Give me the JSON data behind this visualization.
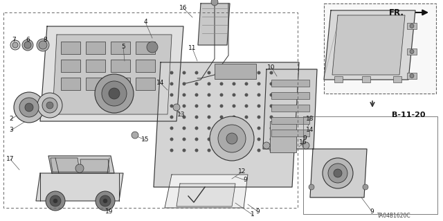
{
  "background_color": "#ffffff",
  "diagram_code": "TA04B1620C",
  "ref_label": "B-11-20",
  "fig_width": 6.4,
  "fig_height": 3.19,
  "dpi": 100,
  "line_color": "#333333",
  "dash_color": "#666666",
  "fill_light": "#d8d8d8",
  "fill_mid": "#b8b8b8",
  "fill_dark": "#888888",
  "label_fs": 6.5
}
